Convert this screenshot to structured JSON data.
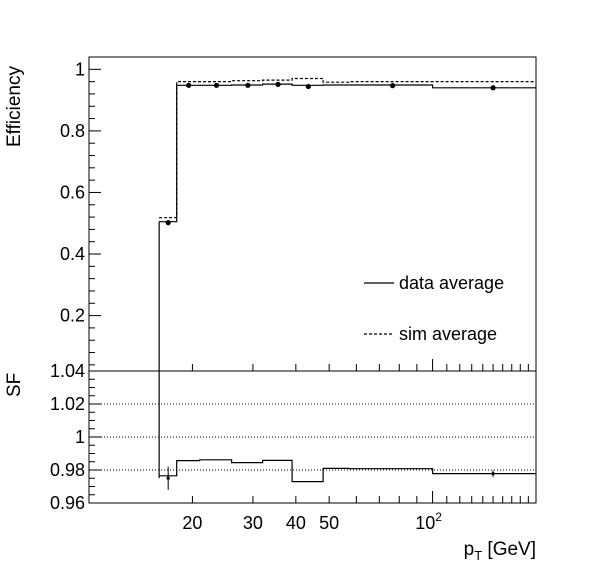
{
  "chart_data": [
    {
      "panel": "efficiency",
      "type": "line",
      "ylabel": "Efficiency",
      "xscale": "log",
      "xlim": [
        10,
        200
      ],
      "ylim": [
        0.02,
        1.04
      ],
      "yticks": [
        0.2,
        0.4,
        0.6,
        0.8,
        1
      ],
      "ytick_labels": [
        "0.2",
        "0.4",
        "0.6",
        "0.8",
        "1"
      ],
      "grid": false,
      "legend_position": "right",
      "bin_edges": [
        16,
        18,
        21,
        26,
        32,
        39,
        48,
        57,
        100,
        200
      ],
      "series": [
        {
          "name": "data average",
          "style": "solid",
          "values": [
            0.505,
            0.948,
            0.948,
            0.949,
            0.952,
            0.948,
            0.949,
            0.949,
            0.94
          ]
        },
        {
          "name": "sim average",
          "style": "dashed",
          "values": [
            0.518,
            0.96,
            0.96,
            0.963,
            0.965,
            0.97,
            0.958,
            0.96,
            0.96
          ]
        }
      ],
      "points": {
        "x": [
          17,
          19.5,
          23.5,
          29,
          35.5,
          43.5,
          76.5,
          150
        ],
        "y": [
          0.502,
          0.948,
          0.948,
          0.948,
          0.951,
          0.944,
          0.947,
          0.94
        ]
      }
    },
    {
      "panel": "ratio",
      "type": "line",
      "ylabel": "SF",
      "xlabel": "p",
      "xlabel_sub": "T",
      "xlabel_unit": " [GeV]",
      "xscale": "log",
      "xlim": [
        10,
        200
      ],
      "ylim": [
        0.96,
        1.04
      ],
      "yticks": [
        0.96,
        0.98,
        1,
        1.02,
        1.04
      ],
      "ytick_labels": [
        "0.96",
        "0.98",
        "1",
        "1.02",
        "1.04"
      ],
      "grid_y": [
        0.98,
        1,
        1.02
      ],
      "xticks": [
        20,
        30,
        40,
        50
      ],
      "xtick_labels": [
        "20",
        "30",
        "40",
        "50"
      ],
      "xtick_pow": {
        "value": 100,
        "base": "10",
        "exp": "2"
      },
      "bin_edges": [
        16,
        18,
        21,
        26,
        32,
        39,
        48,
        57,
        100,
        200
      ],
      "values": [
        0.9765,
        0.9857,
        0.9862,
        0.9845,
        0.9858,
        0.973,
        0.981,
        0.9808,
        0.9778
      ],
      "points": {
        "x": [
          17,
          150
        ],
        "y": [
          0.975,
          0.9778
        ],
        "err": [
          0.007,
          0.002
        ]
      }
    }
  ]
}
